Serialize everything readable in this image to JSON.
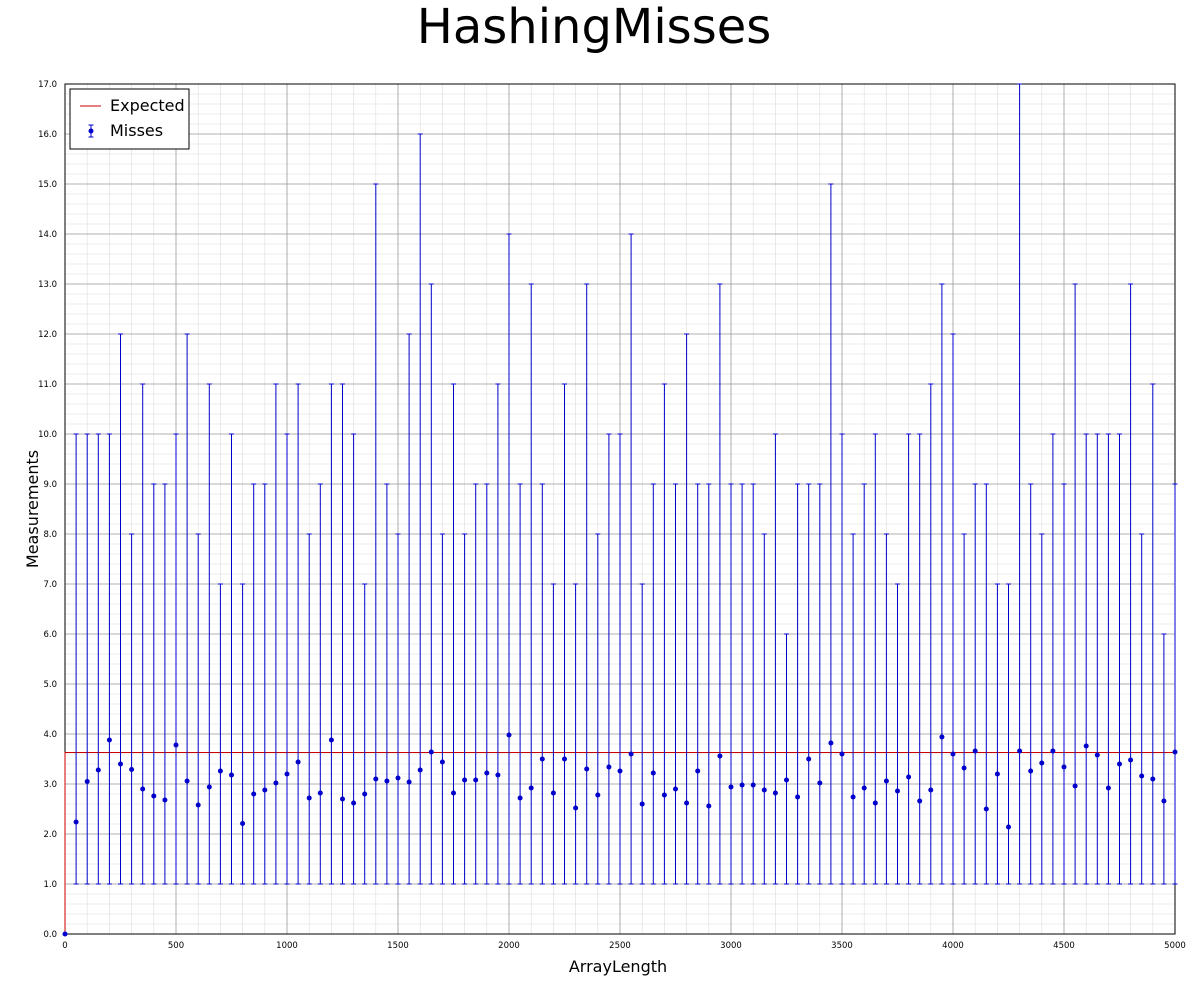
{
  "chart_data": {
    "type": "scatter",
    "title": "HashingMisses",
    "xlabel": "ArrayLength",
    "ylabel": "Measurements",
    "xlim": [
      0,
      5000
    ],
    "ylim": [
      0,
      17
    ],
    "x_ticks": [
      0,
      500,
      1000,
      1500,
      2000,
      2500,
      3000,
      3500,
      4000,
      4500,
      5000
    ],
    "x_tick_labels": [
      "0",
      "500",
      "1000",
      "1500",
      "2000",
      "2500",
      "3000",
      "3500",
      "4000",
      "4500",
      "5000"
    ],
    "y_ticks": [
      0,
      1,
      2,
      3,
      4,
      5,
      6,
      7,
      8,
      9,
      10,
      11,
      12,
      13,
      14,
      15,
      16,
      17
    ],
    "y_tick_labels": [
      "0.0",
      "1.0",
      "2.0",
      "3.0",
      "4.0",
      "5.0",
      "6.0",
      "7.0",
      "8.0",
      "9.0",
      "10.0",
      "11.0",
      "12.0",
      "13.0",
      "14.0",
      "15.0",
      "16.0",
      "17.0"
    ],
    "grid": true,
    "minor_grid": true,
    "legend_position": "top-left",
    "colors": {
      "expected": "#cc0000",
      "misses": "#0000cc",
      "major_grid": "#999999",
      "minor_grid": "#dddddd"
    },
    "series": [
      {
        "name": "Expected",
        "kind": "line",
        "x": [
          0,
          0,
          5000
        ],
        "y": [
          0,
          3.63,
          3.63
        ]
      },
      {
        "name": "Misses",
        "kind": "errorbar",
        "x": [
          0,
          50,
          100,
          150,
          200,
          250,
          300,
          350,
          400,
          450,
          500,
          550,
          600,
          650,
          700,
          750,
          800,
          850,
          900,
          950,
          1000,
          1050,
          1100,
          1150,
          1200,
          1250,
          1300,
          1350,
          1400,
          1450,
          1500,
          1550,
          1600,
          1650,
          1700,
          1750,
          1800,
          1850,
          1900,
          1950,
          2000,
          2050,
          2100,
          2150,
          2200,
          2250,
          2300,
          2350,
          2400,
          2450,
          2500,
          2550,
          2600,
          2650,
          2700,
          2750,
          2800,
          2850,
          2900,
          2950,
          3000,
          3050,
          3100,
          3150,
          3200,
          3250,
          3300,
          3350,
          3400,
          3450,
          3500,
          3550,
          3600,
          3650,
          3700,
          3750,
          3800,
          3850,
          3900,
          3950,
          4000,
          4050,
          4100,
          4150,
          4200,
          4250,
          4300,
          4350,
          4400,
          4450,
          4500,
          4550,
          4600,
          4650,
          4700,
          4750,
          4800,
          4850,
          4900,
          4950,
          5000
        ],
        "y": [
          0.0,
          2.24,
          3.05,
          3.28,
          3.88,
          3.4,
          3.29,
          2.9,
          2.76,
          2.68,
          3.78,
          3.06,
          2.58,
          2.94,
          3.26,
          3.18,
          2.21,
          2.8,
          2.88,
          3.02,
          3.2,
          3.44,
          2.72,
          2.82,
          3.88,
          2.7,
          2.62,
          2.8,
          3.1,
          3.06,
          3.12,
          3.04,
          3.28,
          3.64,
          3.44,
          2.82,
          3.08,
          3.08,
          3.22,
          3.18,
          3.98,
          2.72,
          2.92,
          3.5,
          2.82,
          3.5,
          2.52,
          3.3,
          2.78,
          3.34,
          3.26,
          3.6,
          2.6,
          3.22,
          2.78,
          2.9,
          2.62,
          3.26,
          2.56,
          3.56,
          2.94,
          2.98,
          2.98,
          2.88,
          2.82,
          3.08,
          2.74,
          3.5,
          3.02,
          3.82,
          3.6,
          2.74,
          2.92,
          2.62,
          3.06,
          2.86,
          3.14,
          2.66,
          2.88,
          3.94,
          3.6,
          3.32,
          3.66,
          2.5,
          3.2,
          2.14,
          3.66,
          3.26,
          3.42,
          3.66,
          3.34,
          2.96,
          3.76,
          3.58,
          2.92,
          3.4,
          3.48,
          3.16,
          3.1,
          2.66,
          3.64
        ],
        "y_min": [
          0,
          1,
          1,
          1,
          1,
          1,
          1,
          1,
          1,
          1,
          1,
          1,
          1,
          1,
          1,
          1,
          1,
          1,
          1,
          1,
          1,
          1,
          1,
          1,
          1,
          1,
          1,
          1,
          1,
          1,
          1,
          1,
          1,
          1,
          1,
          1,
          1,
          1,
          1,
          1,
          1,
          1,
          1,
          1,
          1,
          1,
          1,
          1,
          1,
          1,
          1,
          1,
          1,
          1,
          1,
          1,
          1,
          1,
          1,
          1,
          1,
          1,
          1,
          1,
          1,
          1,
          1,
          1,
          1,
          1,
          1,
          1,
          1,
          1,
          1,
          1,
          1,
          1,
          1,
          1,
          1,
          1,
          1,
          1,
          1,
          1,
          1,
          1,
          1,
          1,
          1,
          1,
          1,
          1,
          1,
          1,
          1,
          1,
          1,
          1,
          1
        ],
        "y_max": [
          0,
          10,
          10,
          10,
          10,
          12,
          8,
          11,
          9,
          9,
          10,
          12,
          8,
          11,
          7,
          10,
          7,
          9,
          9,
          11,
          10,
          11,
          8,
          9,
          11,
          11,
          10,
          7,
          15,
          9,
          8,
          12,
          16,
          13,
          8,
          11,
          8,
          9,
          9,
          11,
          14,
          9,
          13,
          9,
          7,
          11,
          7,
          13,
          8,
          10,
          10,
          14,
          7,
          9,
          11,
          9,
          12,
          9,
          9,
          13,
          9,
          9,
          9,
          8,
          10,
          6,
          9,
          9,
          9,
          15,
          10,
          8,
          9,
          10,
          8,
          7,
          10,
          10,
          11,
          13,
          12,
          8,
          9,
          9,
          7,
          7,
          17,
          9,
          8,
          10,
          9,
          13,
          10,
          10,
          10,
          10,
          13,
          8,
          11,
          6,
          9
        ]
      }
    ]
  }
}
